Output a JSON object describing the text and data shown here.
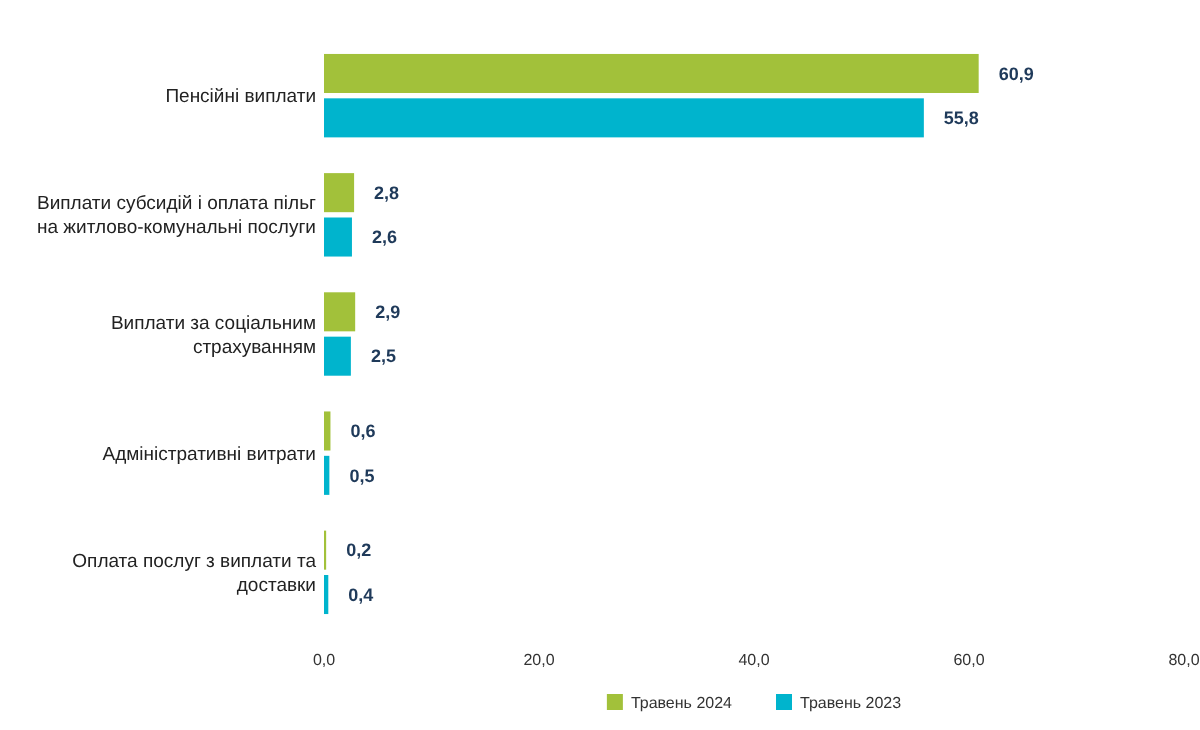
{
  "chart_data": {
    "type": "bar",
    "orientation": "horizontal",
    "categories": [
      "Пенсійні виплати",
      "Виплати субсидій і оплата пільг на житлово-комунальні послуги",
      "Виплати за соціальним страхуванням",
      "Адміністративні витрати",
      "Оплата послуг з виплати та доставки"
    ],
    "series": [
      {
        "name": "Травень 2024",
        "color": "#a2c13a",
        "values": [
          60.9,
          2.8,
          2.9,
          0.6,
          0.2
        ],
        "value_labels": [
          "60,9",
          "2,8",
          "2,9",
          "0,6",
          "0,2"
        ]
      },
      {
        "name": "Травень 2023",
        "color": "#00b4cd",
        "values": [
          55.8,
          2.6,
          2.5,
          0.5,
          0.4
        ],
        "value_labels": [
          "55,8",
          "2,6",
          "2,5",
          "0,5",
          "0,4"
        ]
      }
    ],
    "xlim": [
      0,
      80
    ],
    "xticks": [
      {
        "value": 0,
        "label": "0,0"
      },
      {
        "value": 20,
        "label": "20,0"
      },
      {
        "value": 40,
        "label": "40,0"
      },
      {
        "value": 60,
        "label": "60,0"
      },
      {
        "value": 80,
        "label": "80,0"
      }
    ],
    "legend": "bottom",
    "grid": false
  }
}
